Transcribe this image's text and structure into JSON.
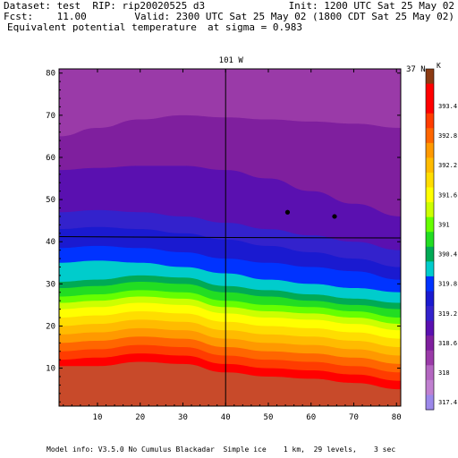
{
  "header": {
    "dataset": "Dataset: test  RIP: rip20020525 d3",
    "init": "Init: 1200 UTC Sat 25 May 02",
    "fcst": "Fcst:    11.00",
    "valid": "Valid: 2300 UTC Sat 25 May 02 (1800 CDT Sat 25 May 02)",
    "field": "Equivalent potential temperature",
    "level": "at sigma = 0.983"
  },
  "footer": "Model info: V3.5.0 No Cumulus Blackadar  Simple ice    1 km,  29 levels,    3 sec",
  "chart_data": {
    "type": "heatmap",
    "xlim": [
      1,
      81
    ],
    "ylim": [
      1,
      81
    ],
    "x_ticks": [
      10,
      20,
      30,
      40,
      50,
      60,
      70,
      80
    ],
    "y_ticks": [
      10,
      20,
      30,
      40,
      50,
      60,
      70,
      80
    ],
    "meridian_label": "101 W",
    "meridian_x": 40,
    "parallel_label": "37 N",
    "parallel_y": 41,
    "colorbar_unit": "K",
    "colorbar_levels": [
      {
        "label": "",
        "color": "#8c3a12"
      },
      {
        "label": "",
        "color": "#ff0000"
      },
      {
        "label": "393.4",
        "color": "#ff0000"
      },
      {
        "label": "",
        "color": "#ff3c00"
      },
      {
        "label": "392.8",
        "color": "#ff6600"
      },
      {
        "label": "",
        "color": "#ff9900"
      },
      {
        "label": "392.2",
        "color": "#ffbb00"
      },
      {
        "label": "",
        "color": "#ffdd00"
      },
      {
        "label": "391.6",
        "color": "#ffff00"
      },
      {
        "label": "",
        "color": "#ccff00"
      },
      {
        "label": "391",
        "color": "#66ff00"
      },
      {
        "label": "",
        "color": "#22dd22"
      },
      {
        "label": "390.4",
        "color": "#00aa55"
      },
      {
        "label": "",
        "color": "#00cccc"
      },
      {
        "label": "319.8",
        "color": "#0033ff"
      },
      {
        "label": "",
        "color": "#1a1ad0"
      },
      {
        "label": "319.2",
        "color": "#3322cc"
      },
      {
        "label": "",
        "color": "#5a10b0"
      },
      {
        "label": "318.6",
        "color": "#7f1f9e"
      },
      {
        "label": "",
        "color": "#9a3aa8"
      },
      {
        "label": "318",
        "color": "#b366c0"
      },
      {
        "label": "",
        "color": "#c080d0"
      },
      {
        "label": "317.4",
        "color": "#9c88ea"
      }
    ],
    "band_boundaries": [
      {
        "y": [
          10.5,
          10.5,
          11.5,
          11,
          9,
          8,
          7.5,
          6.5,
          5
        ],
        "color": "#ff0000"
      },
      {
        "y": [
          12,
          12.5,
          13.5,
          13,
          11,
          10,
          9.5,
          8.5,
          7
        ],
        "color": "#ff3c00"
      },
      {
        "y": [
          14,
          14.5,
          15.5,
          15,
          13,
          12,
          11.5,
          10.5,
          9
        ],
        "color": "#ff6600"
      },
      {
        "y": [
          16,
          16.5,
          17.5,
          17,
          15,
          14,
          13.5,
          12.5,
          11
        ],
        "color": "#ff9900"
      },
      {
        "y": [
          18,
          18.5,
          19.5,
          19,
          17,
          16,
          15.5,
          14.5,
          13
        ],
        "color": "#ffbb00"
      },
      {
        "y": [
          20,
          20.5,
          21.5,
          21,
          19,
          18,
          17.5,
          16.5,
          15
        ],
        "color": "#ffdd00"
      },
      {
        "y": [
          22,
          22.5,
          23.5,
          23,
          21,
          20,
          19.5,
          18.5,
          17
        ],
        "color": "#ffff00"
      },
      {
        "y": [
          24,
          24.5,
          25.5,
          25,
          23,
          22,
          21.5,
          20.5,
          19
        ],
        "color": "#ccff00"
      },
      {
        "y": [
          25.5,
          26,
          27,
          26.5,
          24.5,
          23.5,
          23,
          22,
          20.5
        ],
        "color": "#66ff00"
      },
      {
        "y": [
          27,
          27.5,
          28.5,
          28,
          26,
          25,
          24.5,
          23.5,
          22
        ],
        "color": "#22dd22"
      },
      {
        "y": [
          29,
          29.5,
          30.5,
          30,
          28,
          27,
          26,
          25,
          24
        ],
        "color": "#00aa55"
      },
      {
        "y": [
          30.5,
          31,
          32,
          31.5,
          29.5,
          28.5,
          27.5,
          26.5,
          25.5
        ],
        "color": "#00cccc"
      },
      {
        "y": [
          35,
          35.5,
          35,
          34,
          32.5,
          31,
          30,
          29,
          28
        ],
        "color": "#0033ff"
      },
      {
        "y": [
          38.5,
          39,
          38.5,
          37.5,
          36,
          35,
          34,
          33,
          31
        ],
        "color": "#1a1ad0"
      },
      {
        "y": [
          43,
          43.5,
          43,
          42,
          40.5,
          39,
          37.5,
          36,
          34
        ],
        "color": "#3322cc"
      },
      {
        "y": [
          47,
          47.5,
          47,
          46,
          44.5,
          43,
          41.5,
          40,
          38
        ],
        "color": "#5a10b0"
      },
      {
        "y": [
          57,
          57.5,
          58,
          58,
          57,
          55,
          52,
          49,
          46
        ],
        "color": "#7f1f9e"
      },
      {
        "y": [
          65,
          67,
          69,
          70,
          69.5,
          69,
          68.5,
          68,
          67
        ],
        "color": "#9a3aa8"
      },
      {
        "y": [
          81,
          81,
          81,
          81,
          81,
          81,
          81,
          81,
          81
        ],
        "color": "#b366c0"
      }
    ],
    "band_x": [
      1,
      10,
      20,
      30,
      40,
      50,
      60,
      70,
      81
    ],
    "markers": [
      [
        54.5,
        47
      ],
      [
        65.5,
        46
      ]
    ]
  }
}
